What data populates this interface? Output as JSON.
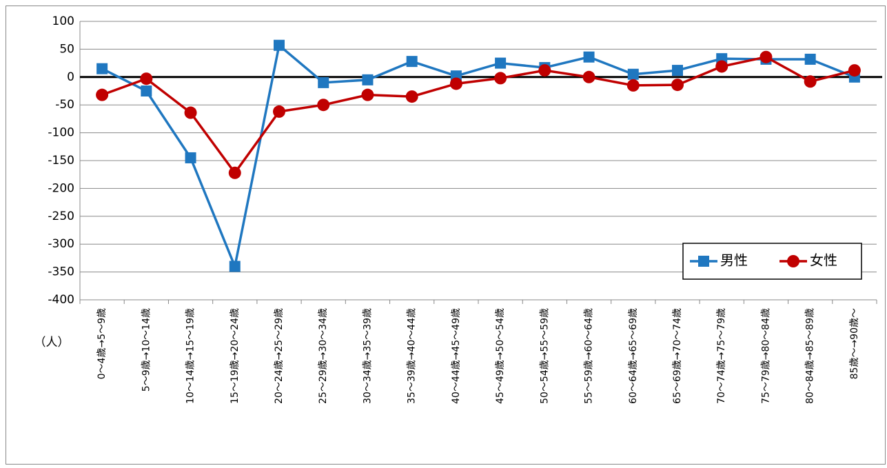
{
  "chart_data": {
    "type": "line",
    "y_label": "（人）",
    "categories": [
      "0～4歳→5～9歳",
      "5～9歳→10～14歳",
      "10～14歳→15～19歳",
      "15～19歳→20～24歳",
      "20～24歳→25～29歳",
      "25～29歳→30～34歳",
      "30～34歳→35～39歳",
      "35～39歳→40～44歳",
      "40～44歳→45～49歳",
      "45～49歳→50～54歳",
      "50～54歳→55～59歳",
      "55～59歳→60～64歳",
      "60～64歳→65～69歳",
      "65～69歳→70～74歳",
      "70～74歳→75～79歳",
      "75～79歳→80～84歳",
      "80～84歳→85～89歳",
      "85歳～→90歳～"
    ],
    "series": [
      {
        "name": "男性",
        "color": "#1f77c0",
        "marker": "square",
        "values": [
          15,
          -25,
          -145,
          -340,
          57,
          -10,
          -5,
          28,
          2,
          25,
          17,
          36,
          5,
          12,
          33,
          32,
          32,
          0
        ]
      },
      {
        "name": "女性",
        "color": "#c00000",
        "marker": "circle",
        "values": [
          -32,
          -3,
          -64,
          -172,
          -62,
          -50,
          -32,
          -35,
          -12,
          -2,
          12,
          0,
          -15,
          -14,
          19,
          36,
          -8,
          12
        ]
      }
    ],
    "ylim": [
      -400,
      100
    ],
    "yticks": [
      -400,
      -350,
      -300,
      -250,
      -200,
      -150,
      -100,
      -50,
      0,
      50,
      100
    ],
    "grid": true,
    "legend": "lower right"
  }
}
